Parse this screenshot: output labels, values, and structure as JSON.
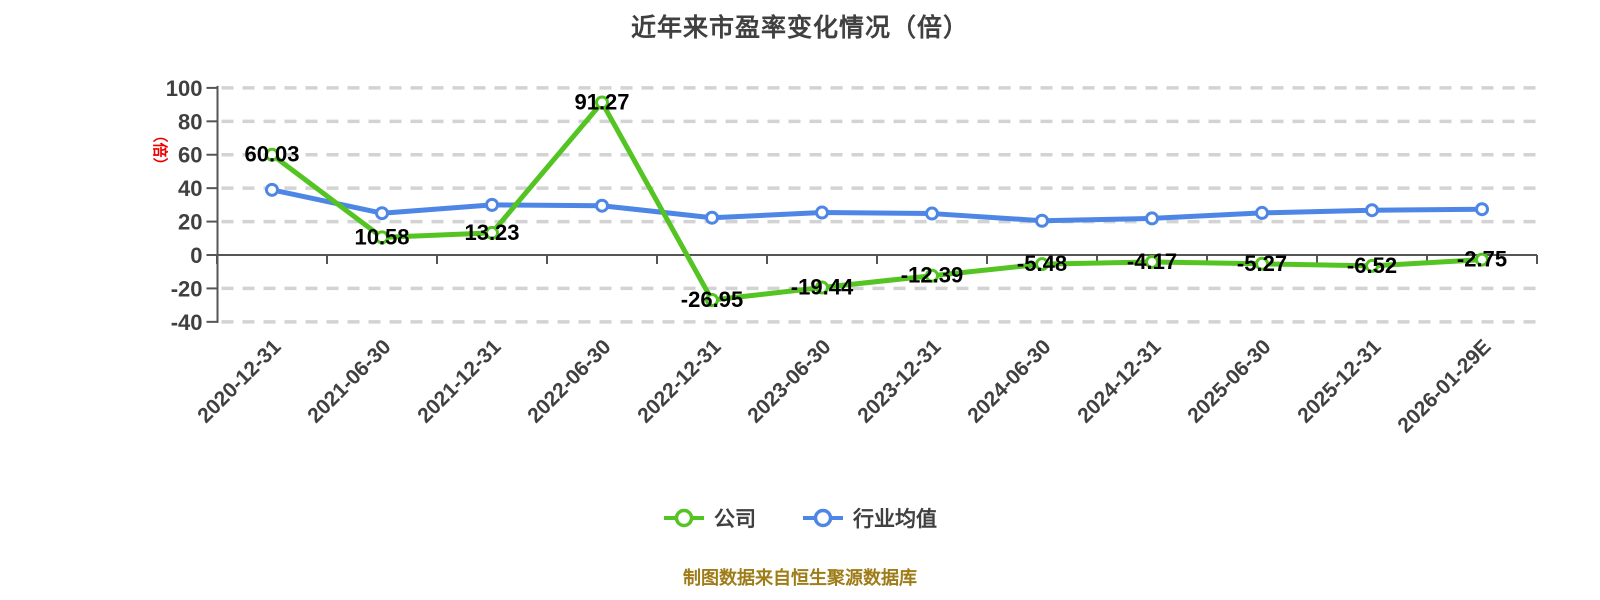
{
  "chart": {
    "title": "近年来市盈率变化情况（倍）",
    "y_unit_label": "（倍）",
    "legend": {
      "company": "公司",
      "industry": "行业均值"
    },
    "source_note": "制图数据来自恒生聚源数据库"
  },
  "colors": {
    "company_green": "#54c423",
    "industry_blue": "#4e86e6",
    "grid_line": "#d3d3d3",
    "axis_line": "#555555",
    "tick_label": "#404040",
    "title_text": "#404040",
    "data_label": "#000000",
    "unit_label_red": "#ee0000",
    "source_note_gold": "#9e7c18",
    "background": "#ffffff",
    "point_fill": "#ffffff"
  },
  "chart_data": {
    "type": "line",
    "title": "近年来市盈率变化情况（倍）",
    "xlabel": "",
    "ylabel": "（倍）",
    "ylim": [
      -40,
      100
    ],
    "ytick_step": 20,
    "yticks": [
      100,
      80,
      60,
      40,
      20,
      0,
      -20,
      -40
    ],
    "grid": "horizontal-dashed",
    "legend_position": "bottom",
    "categories": [
      "2020-12-31",
      "2021-06-30",
      "2021-12-31",
      "2022-06-30",
      "2022-12-31",
      "2023-06-30",
      "2023-12-31",
      "2024-06-30",
      "2024-12-31",
      "2025-06-30",
      "2025-12-31",
      "2026-01-29E"
    ],
    "series": [
      {
        "name": "公司",
        "values": [
          60.03,
          10.58,
          13.23,
          91.27,
          -26.95,
          -19.44,
          -12.39,
          -5.48,
          -4.17,
          -5.27,
          -6.52,
          -2.75
        ],
        "labels_shown": true
      },
      {
        "name": "行业均值",
        "values": [
          39,
          25,
          30,
          29.5,
          22.3,
          25.4,
          24.8,
          20.5,
          21.9,
          25.2,
          26.8,
          27.4
        ],
        "labels_shown": false
      }
    ]
  }
}
